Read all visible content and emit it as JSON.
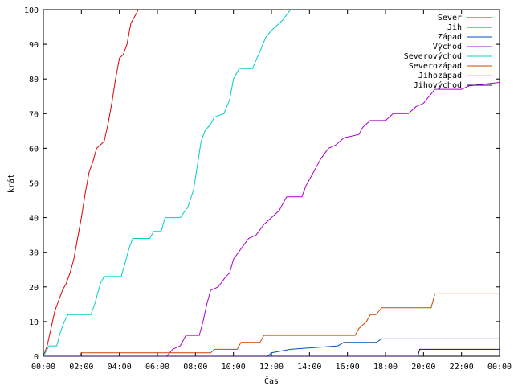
{
  "chart_data": {
    "type": "line",
    "title": "",
    "xlabel": "Čas",
    "ylabel": "krát",
    "xlim": [
      "00:00",
      "00:00"
    ],
    "ylim": [
      0,
      100
    ],
    "x_ticks": [
      "00:00",
      "02:00",
      "04:00",
      "06:00",
      "08:00",
      "10:00",
      "12:00",
      "14:00",
      "16:00",
      "18:00",
      "20:00",
      "22:00",
      "00:00"
    ],
    "y_ticks": [
      0,
      10,
      20,
      30,
      40,
      50,
      60,
      70,
      80,
      90,
      100
    ],
    "legend_position": "top-right",
    "grid": false,
    "x_unit": "hours",
    "series": [
      {
        "name": "Sever",
        "color": "#dd0000",
        "points": [
          [
            0,
            0
          ],
          [
            0.2,
            3
          ],
          [
            0.4,
            8
          ],
          [
            0.6,
            13
          ],
          [
            0.8,
            16
          ],
          [
            1.0,
            19
          ],
          [
            1.2,
            21
          ],
          [
            1.4,
            24
          ],
          [
            1.6,
            28
          ],
          [
            1.8,
            34
          ],
          [
            2.0,
            40
          ],
          [
            2.2,
            47
          ],
          [
            2.4,
            53
          ],
          [
            2.6,
            56
          ],
          [
            2.8,
            60
          ],
          [
            3.0,
            61
          ],
          [
            3.2,
            62
          ],
          [
            3.4,
            67
          ],
          [
            3.6,
            73
          ],
          [
            3.8,
            80
          ],
          [
            4.0,
            86
          ],
          [
            4.2,
            87
          ],
          [
            4.4,
            90
          ],
          [
            4.6,
            96
          ],
          [
            4.8,
            98
          ],
          [
            5.0,
            100
          ]
        ]
      },
      {
        "name": "Jih",
        "color": "#009900",
        "points": []
      },
      {
        "name": "Západ",
        "color": "#0055bb",
        "points": [
          [
            0,
            0
          ],
          [
            11.8,
            0
          ],
          [
            12.0,
            1
          ],
          [
            13.0,
            2
          ],
          [
            15.5,
            3
          ],
          [
            15.8,
            4
          ],
          [
            17.5,
            4
          ],
          [
            17.8,
            5
          ],
          [
            24,
            5
          ]
        ]
      },
      {
        "name": "Východ",
        "color": "#aa00cc",
        "points": [
          [
            0,
            0
          ],
          [
            6.5,
            0
          ],
          [
            6.8,
            2
          ],
          [
            7.2,
            3
          ],
          [
            7.5,
            6
          ],
          [
            8.2,
            6
          ],
          [
            8.4,
            10
          ],
          [
            8.6,
            15
          ],
          [
            8.8,
            19
          ],
          [
            9.2,
            20
          ],
          [
            9.6,
            23
          ],
          [
            9.8,
            24
          ],
          [
            10.0,
            28
          ],
          [
            10.4,
            31
          ],
          [
            10.8,
            34
          ],
          [
            11.2,
            35
          ],
          [
            11.6,
            38
          ],
          [
            12.0,
            40
          ],
          [
            12.4,
            42
          ],
          [
            12.8,
            46
          ],
          [
            13.6,
            46
          ],
          [
            13.8,
            49
          ],
          [
            14.2,
            53
          ],
          [
            14.6,
            57
          ],
          [
            15.0,
            60
          ],
          [
            15.4,
            61
          ],
          [
            15.8,
            63
          ],
          [
            16.6,
            64
          ],
          [
            16.8,
            66
          ],
          [
            17.2,
            68
          ],
          [
            18.0,
            68
          ],
          [
            18.4,
            70
          ],
          [
            19.2,
            70
          ],
          [
            19.6,
            72
          ],
          [
            20.0,
            73
          ],
          [
            20.6,
            77
          ],
          [
            22.0,
            77
          ],
          [
            22.4,
            78
          ],
          [
            24,
            79
          ]
        ]
      },
      {
        "name": "Severovýchod",
        "color": "#00cccc",
        "points": [
          [
            0,
            0
          ],
          [
            0.3,
            3
          ],
          [
            0.7,
            3
          ],
          [
            0.9,
            7
          ],
          [
            1.1,
            10
          ],
          [
            1.3,
            12
          ],
          [
            2.5,
            12
          ],
          [
            2.7,
            15
          ],
          [
            3.0,
            21
          ],
          [
            3.2,
            23
          ],
          [
            4.1,
            23
          ],
          [
            4.3,
            27
          ],
          [
            4.5,
            31
          ],
          [
            4.7,
            34
          ],
          [
            5.6,
            34
          ],
          [
            5.8,
            36
          ],
          [
            6.2,
            36
          ],
          [
            6.4,
            40
          ],
          [
            7.2,
            40
          ],
          [
            7.6,
            43
          ],
          [
            7.9,
            48
          ],
          [
            8.1,
            55
          ],
          [
            8.3,
            62
          ],
          [
            8.5,
            65
          ],
          [
            8.8,
            67
          ],
          [
            9.0,
            69
          ],
          [
            9.5,
            70
          ],
          [
            9.8,
            74
          ],
          [
            10.0,
            80
          ],
          [
            10.3,
            83
          ],
          [
            11.0,
            83
          ],
          [
            11.4,
            88
          ],
          [
            11.7,
            92
          ],
          [
            12.0,
            94
          ],
          [
            12.6,
            97
          ],
          [
            13.0,
            100
          ]
        ]
      },
      {
        "name": "Severozápad",
        "color": "#cc4400",
        "points": [
          [
            0,
            0
          ],
          [
            1.9,
            0
          ],
          [
            2.0,
            1
          ],
          [
            8.8,
            1
          ],
          [
            9.0,
            2
          ],
          [
            10.2,
            2
          ],
          [
            10.4,
            4
          ],
          [
            11.4,
            4
          ],
          [
            11.6,
            6
          ],
          [
            16.4,
            6
          ],
          [
            16.6,
            8
          ],
          [
            17.0,
            10
          ],
          [
            17.2,
            12
          ],
          [
            17.5,
            12
          ],
          [
            17.8,
            14
          ],
          [
            20.4,
            14
          ],
          [
            20.6,
            18
          ],
          [
            24,
            18
          ]
        ]
      },
      {
        "name": "Jihozápad",
        "color": "#dddd00",
        "points": []
      },
      {
        "name": "Jihovýchod",
        "color": "#220066",
        "points": [
          [
            0,
            0
          ],
          [
            19.7,
            0
          ],
          [
            19.8,
            2
          ],
          [
            24,
            2
          ]
        ]
      }
    ]
  }
}
